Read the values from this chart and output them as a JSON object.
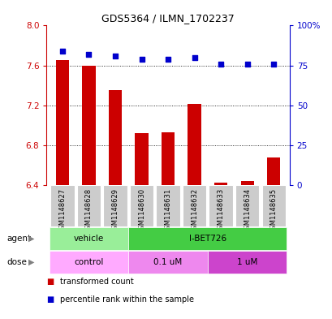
{
  "title": "GDS5364 / ILMN_1702237",
  "samples": [
    "GSM1148627",
    "GSM1148628",
    "GSM1148629",
    "GSM1148630",
    "GSM1148631",
    "GSM1148632",
    "GSM1148633",
    "GSM1148634",
    "GSM1148635"
  ],
  "bar_values": [
    7.65,
    7.6,
    7.35,
    6.92,
    6.93,
    7.21,
    6.42,
    6.44,
    6.68
  ],
  "dot_values": [
    84,
    82,
    81,
    79,
    79,
    80,
    76,
    76,
    76
  ],
  "ylim_left": [
    6.4,
    8.0
  ],
  "ylim_right": [
    0,
    100
  ],
  "yticks_left": [
    6.4,
    6.8,
    7.2,
    7.6,
    8.0
  ],
  "yticks_right": [
    0,
    25,
    50,
    75,
    100
  ],
  "bar_color": "#cc0000",
  "dot_color": "#0000cc",
  "bar_bottom": 6.4,
  "agent_groups": [
    {
      "label": "vehicle",
      "start": 0,
      "end": 3,
      "color": "#99ee99"
    },
    {
      "label": "I-BET726",
      "start": 3,
      "end": 9,
      "color": "#44cc44"
    }
  ],
  "dose_groups": [
    {
      "label": "control",
      "start": 0,
      "end": 3,
      "color": "#ffaaff"
    },
    {
      "label": "0.1 uM",
      "start": 3,
      "end": 6,
      "color": "#ee88ee"
    },
    {
      "label": "1 uM",
      "start": 6,
      "end": 9,
      "color": "#cc44cc"
    }
  ],
  "legend_items": [
    {
      "label": "transformed count",
      "color": "#cc0000"
    },
    {
      "label": "percentile rank within the sample",
      "color": "#0000cc"
    }
  ],
  "bg_color": "#ffffff",
  "sample_box_color": "#cccccc",
  "left_tick_color": "#cc0000",
  "right_tick_color": "#0000cc"
}
